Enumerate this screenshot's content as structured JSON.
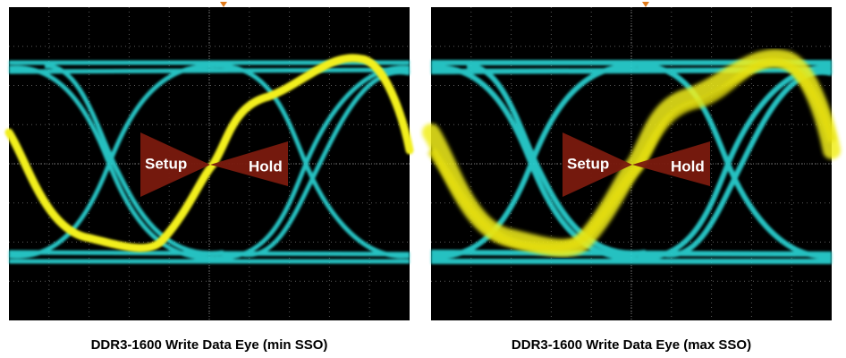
{
  "panels": [
    {
      "caption": "DDR3-1600 Write Data Eye (min SSO)",
      "setup_label": "Setup",
      "hold_label": "Hold"
    },
    {
      "caption": "DDR3-1600 Write Data Eye (max SSO)",
      "setup_label": "Setup",
      "hold_label": "Hold"
    }
  ]
}
